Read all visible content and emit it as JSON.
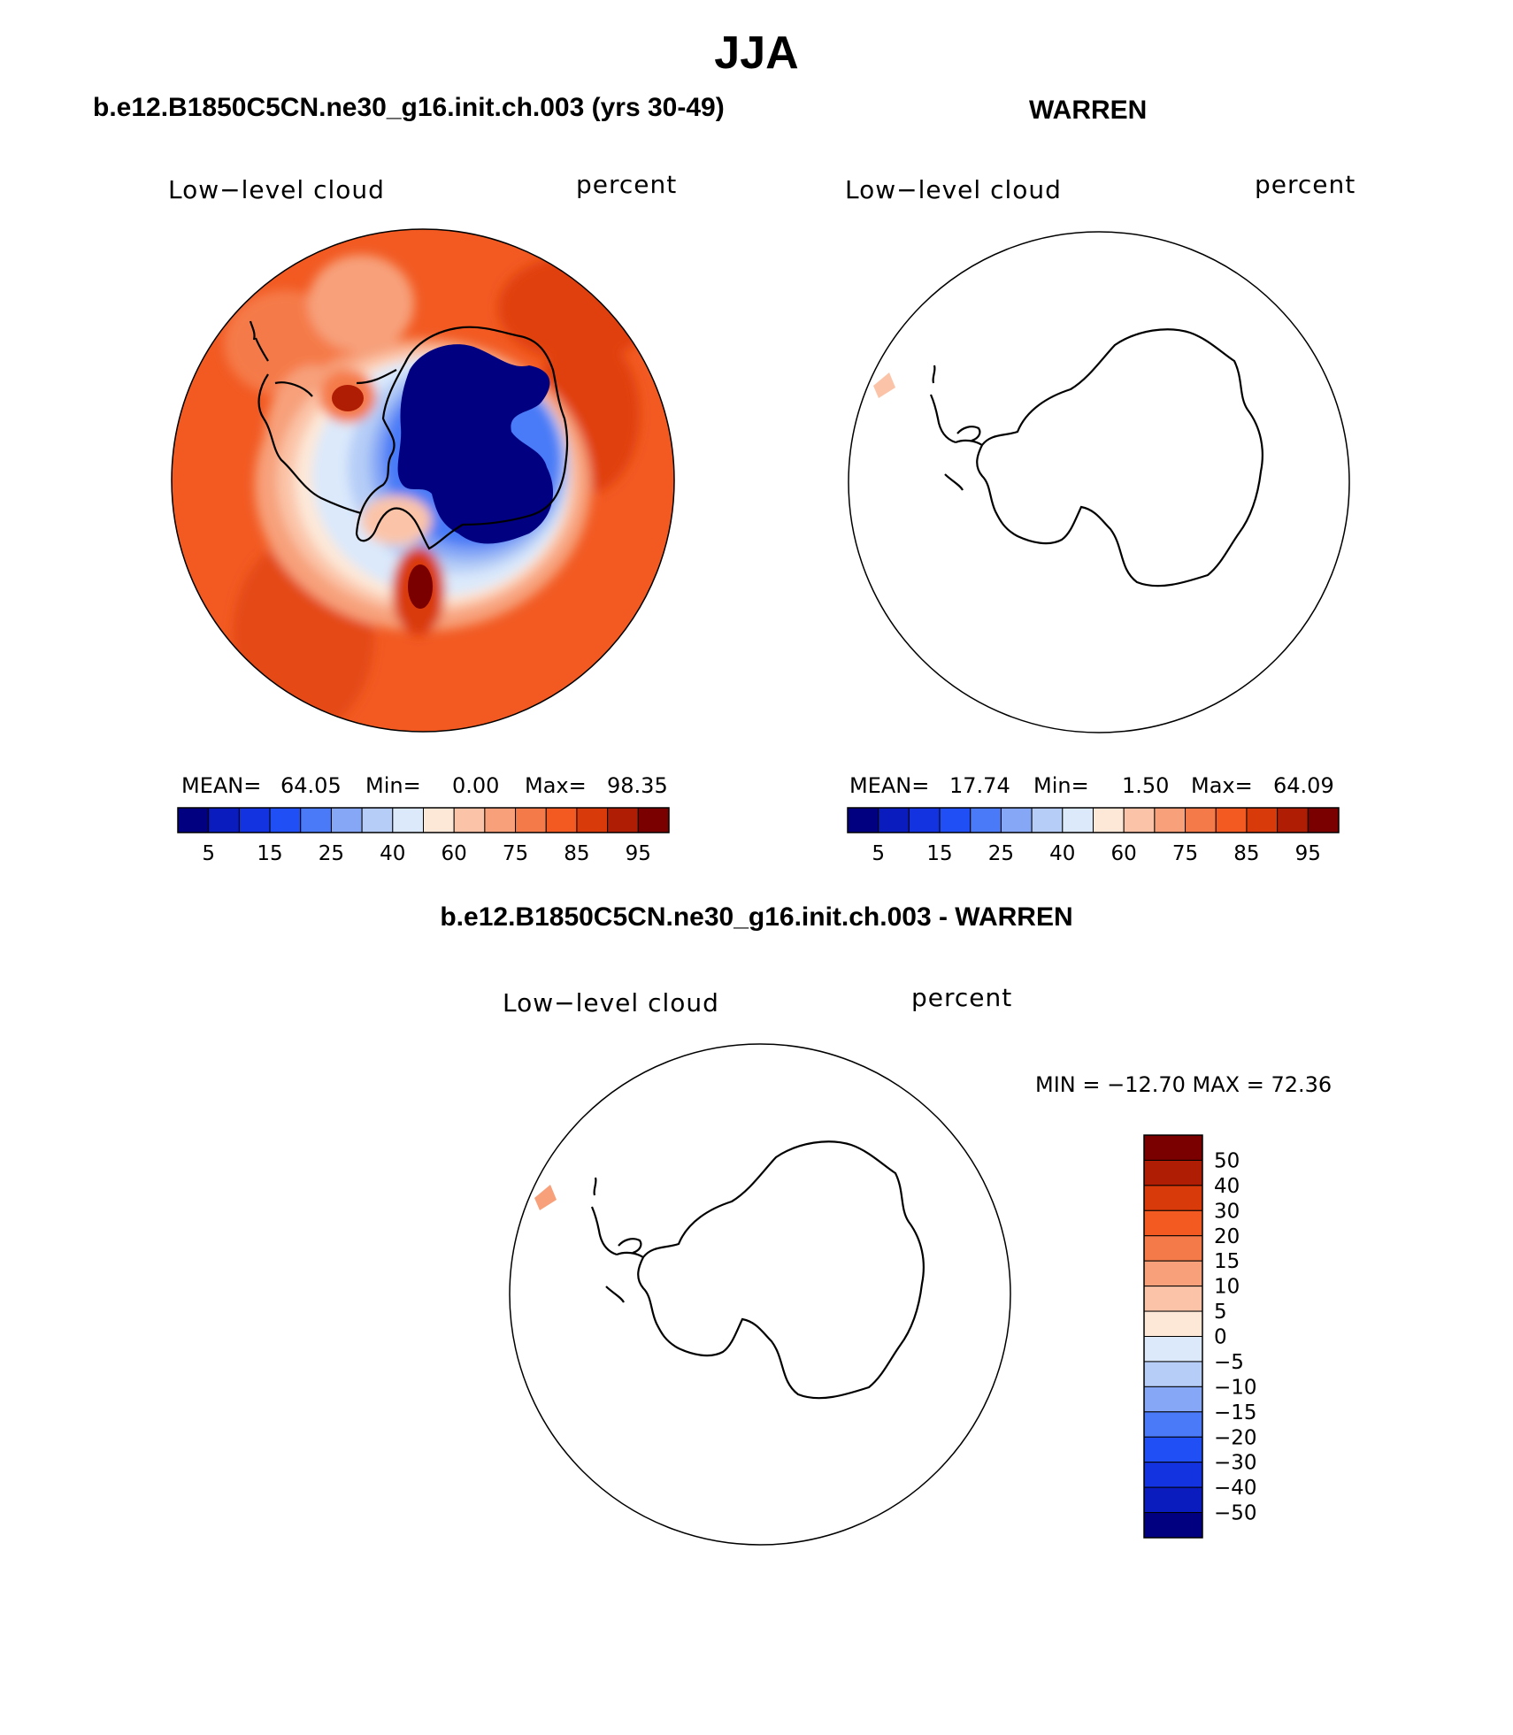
{
  "title": "JJA",
  "panels": {
    "model": {
      "title": "b.e12.B1850C5CN.ne30_g16.init.ch.003 (yrs 30-49)",
      "variable": "Low−level cloud",
      "units": "percent",
      "stats": {
        "mean_label": "MEAN=",
        "mean": "64.05",
        "min_label": "Min=",
        "min": "0.00",
        "max_label": "Max=",
        "max": "98.35"
      }
    },
    "obs": {
      "title": "WARREN",
      "variable": "Low−level cloud",
      "units": "percent",
      "stats": {
        "mean_label": "MEAN=",
        "mean": "17.74",
        "min_label": "Min=",
        "min": "1.50",
        "max_label": "Max=",
        "max": "64.09"
      }
    },
    "diff": {
      "title": "b.e12.B1850C5CN.ne30_g16.init.ch.003 - WARREN",
      "variable": "Low−level cloud",
      "units": "percent",
      "stats_text": "MIN = −12.70 MAX =   72.36"
    }
  },
  "chart_data": {
    "type": "contour-map",
    "projection": "south polar stereographic",
    "season": "JJA",
    "field": "Low-level cloud (percent)",
    "colorbar_abs": {
      "colors": [
        "#000080",
        "#0a1cbe",
        "#1433e0",
        "#1f4ff5",
        "#4a7af7",
        "#86a7f5",
        "#b5cdf7",
        "#dbe9fb",
        "#fde8d8",
        "#fbc4a8",
        "#f7a07a",
        "#f57a4a",
        "#f25a22",
        "#d93a0a",
        "#b01d05",
        "#7a0000"
      ],
      "tick_labels": [
        "5",
        "15",
        "25",
        "40",
        "60",
        "75",
        "85",
        "95"
      ]
    },
    "colorbar_diff": {
      "colors": [
        "#000080",
        "#0a1cbe",
        "#1433e0",
        "#1f4ff5",
        "#4a7af7",
        "#86a7f5",
        "#b5cdf7",
        "#dbe9fb",
        "#fde8d8",
        "#fbc4a8",
        "#f7a07a",
        "#f57a4a",
        "#f25a22",
        "#d93a0a",
        "#b01d05",
        "#7a0000"
      ],
      "tick_labels": [
        "50",
        "40",
        "30",
        "20",
        "15",
        "10",
        "5",
        "0",
        "−5",
        "−10",
        "−15",
        "−20",
        "−30",
        "−40",
        "−50"
      ]
    }
  }
}
